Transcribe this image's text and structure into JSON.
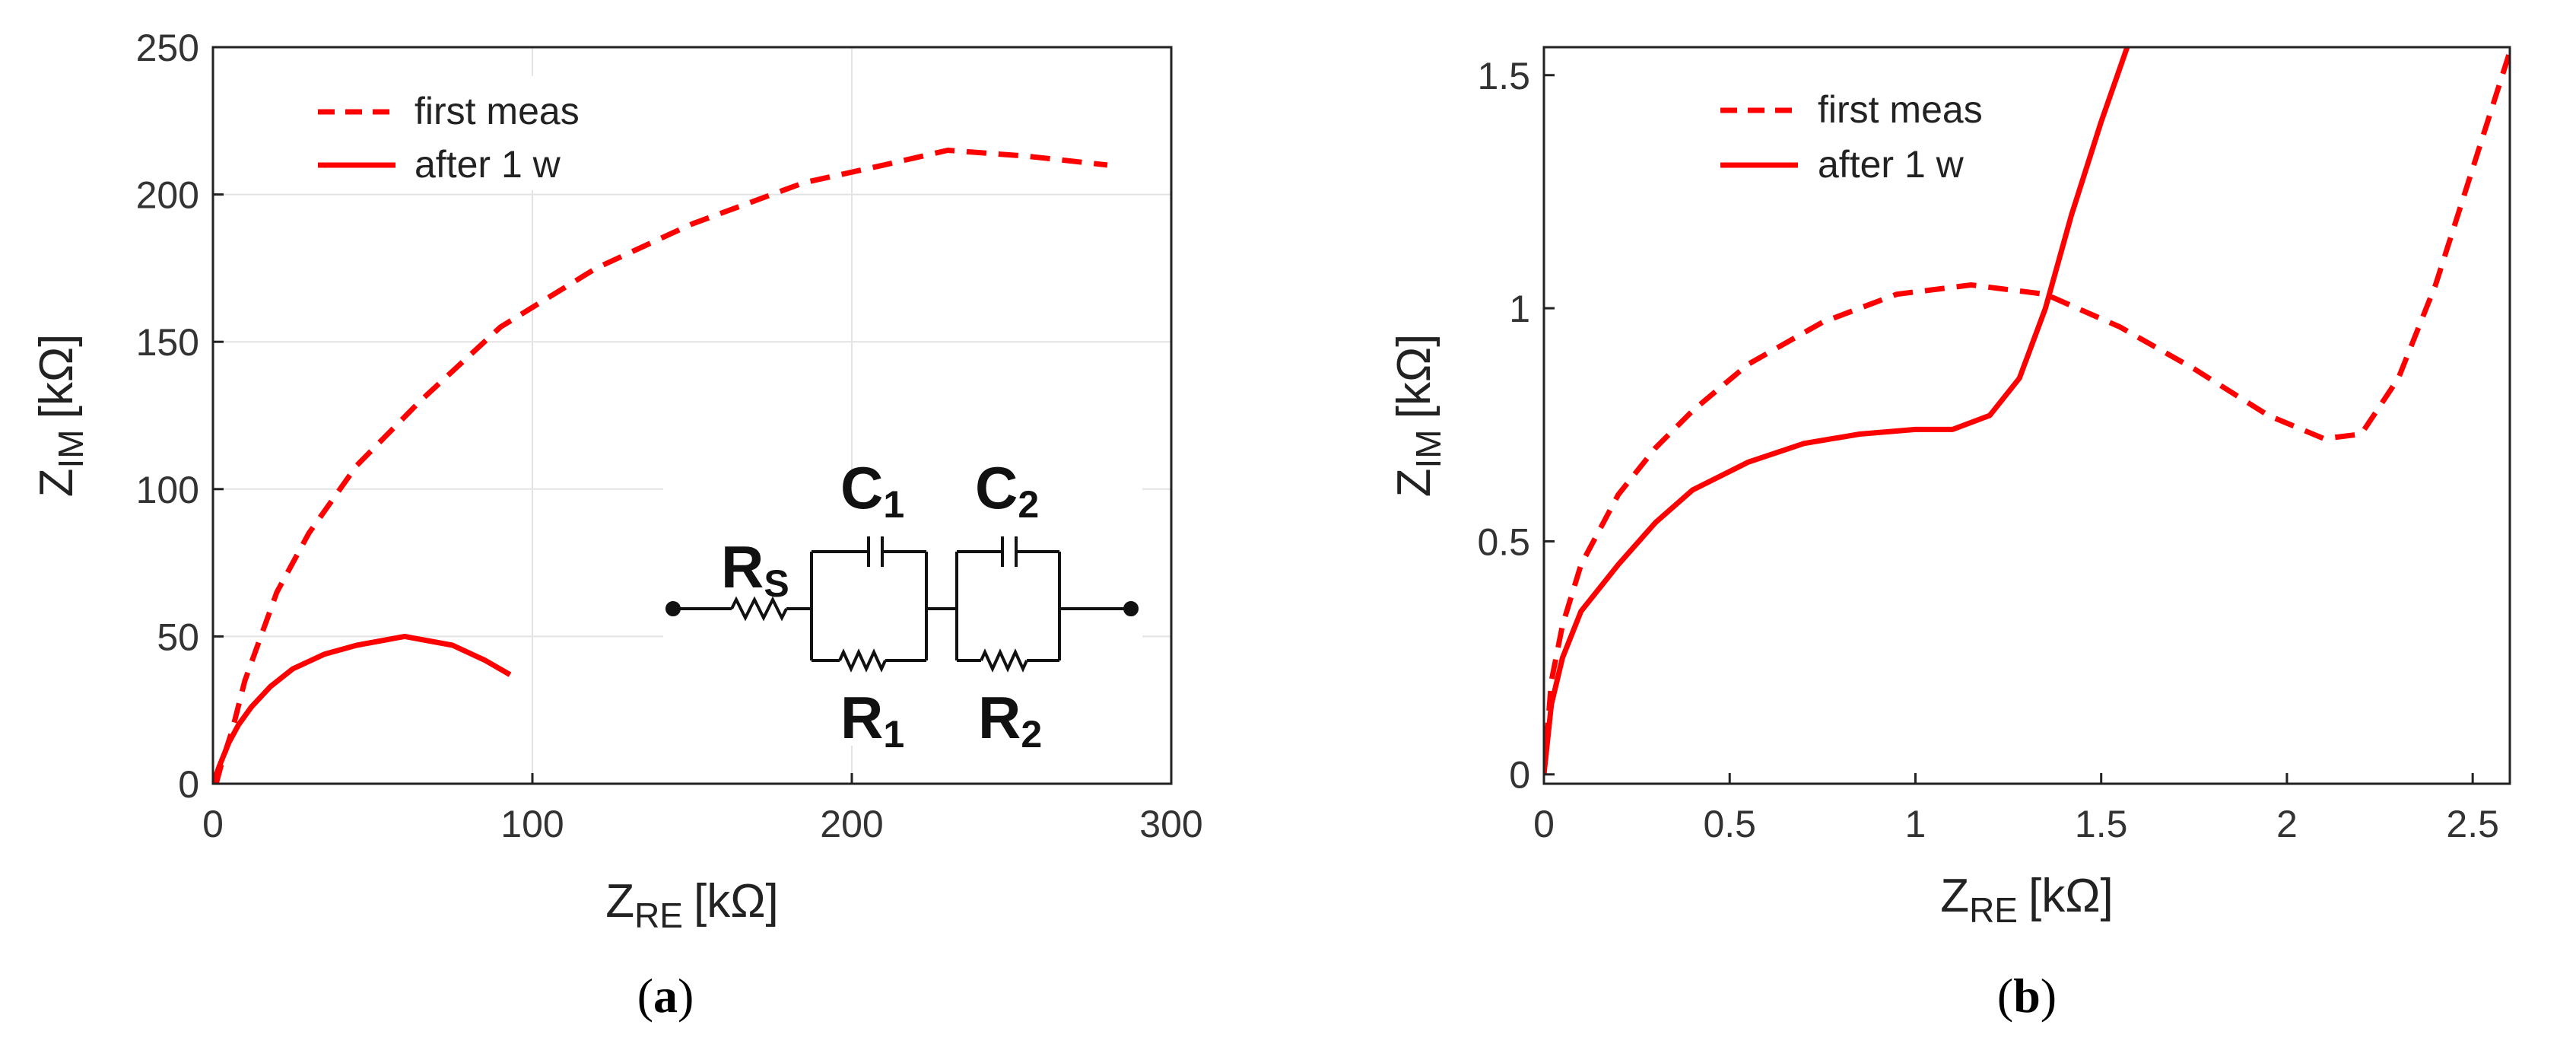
{
  "chart_data": [
    {
      "panel_label": "a",
      "type": "line",
      "xlabel_main": "Z",
      "xlabel_sub": "RE",
      "xlabel_unit": "[kΩ]",
      "ylabel_main": "Z",
      "ylabel_sub": "IM",
      "ylabel_unit": "[kΩ]",
      "xlim": [
        0,
        300
      ],
      "ylim": [
        0,
        250
      ],
      "xticks": [
        0,
        100,
        200,
        300
      ],
      "yticks": [
        0,
        50,
        100,
        150,
        200,
        250
      ],
      "grid": true,
      "legend_position": "top-left",
      "series": [
        {
          "name": "first meas",
          "style": "dashed",
          "color": "#ff0000",
          "x": [
            1,
            3,
            6,
            10,
            15,
            20,
            30,
            45,
            65,
            90,
            120,
            150,
            185,
            210,
            230,
            255,
            280
          ],
          "y": [
            0,
            8,
            18,
            35,
            50,
            65,
            85,
            108,
            130,
            155,
            175,
            190,
            204,
            210,
            215,
            213,
            210
          ]
        },
        {
          "name": "after 1 w",
          "style": "solid",
          "color": "#ff0000",
          "x": [
            0,
            2,
            5,
            8,
            12,
            18,
            25,
            35,
            45,
            60,
            75,
            85,
            93
          ],
          "y": [
            0,
            6,
            14,
            20,
            26,
            33,
            39,
            44,
            47,
            50,
            47,
            42,
            37
          ]
        }
      ],
      "inset_circuit": {
        "labels": [
          {
            "main": "R",
            "sub": "S"
          },
          {
            "main": "C",
            "sub": "1"
          },
          {
            "main": "C",
            "sub": "2"
          },
          {
            "main": "R",
            "sub": "1"
          },
          {
            "main": "R",
            "sub": "2"
          }
        ]
      }
    },
    {
      "panel_label": "b",
      "type": "line",
      "xlabel_main": "Z",
      "xlabel_sub": "RE",
      "xlabel_unit": "[kΩ]",
      "ylabel_main": "Z",
      "ylabel_sub": "IM",
      "ylabel_unit": "[kΩ]",
      "xlim": [
        0,
        2.6
      ],
      "ylim": [
        -0.02,
        1.56
      ],
      "xticks": [
        0,
        0.5,
        1,
        1.5,
        2,
        2.5
      ],
      "yticks": [
        0,
        0.5,
        1,
        1.5
      ],
      "grid": false,
      "legend_position": "top-left",
      "series": [
        {
          "name": "first meas",
          "style": "dashed",
          "color": "#ff0000",
          "x": [
            0,
            0.02,
            0.05,
            0.1,
            0.2,
            0.3,
            0.4,
            0.55,
            0.75,
            0.95,
            1.15,
            1.35,
            1.55,
            1.75,
            1.95,
            2.1,
            2.2,
            2.3,
            2.4,
            2.5,
            2.6
          ],
          "y": [
            0,
            0.2,
            0.32,
            0.45,
            0.6,
            0.7,
            0.78,
            0.88,
            0.97,
            1.03,
            1.05,
            1.03,
            0.96,
            0.87,
            0.77,
            0.72,
            0.73,
            0.85,
            1.05,
            1.3,
            1.55
          ]
        },
        {
          "name": "after 1 w",
          "style": "solid",
          "color": "#ff0000",
          "x": [
            0,
            0.02,
            0.05,
            0.1,
            0.2,
            0.3,
            0.4,
            0.55,
            0.7,
            0.85,
            1.0,
            1.1,
            1.2,
            1.28,
            1.35,
            1.42,
            1.5,
            1.57
          ],
          "y": [
            0,
            0.15,
            0.25,
            0.35,
            0.45,
            0.54,
            0.61,
            0.67,
            0.71,
            0.73,
            0.74,
            0.74,
            0.77,
            0.85,
            1.0,
            1.2,
            1.4,
            1.56
          ]
        }
      ]
    }
  ]
}
